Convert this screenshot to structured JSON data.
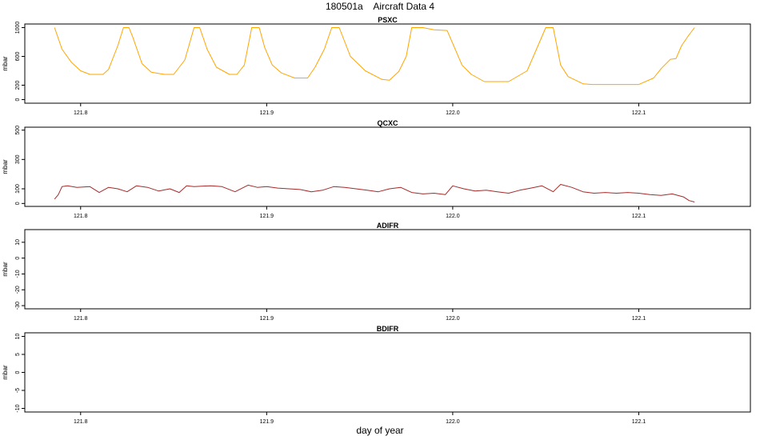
{
  "title": "180501a    Aircraft Data 4",
  "xlabel": "day of year",
  "chart_data": [
    {
      "type": "line",
      "title": "PSXC",
      "ylabel": "mbar",
      "color": "#FFA500",
      "xlim": [
        121.77,
        122.16
      ],
      "ylim": [
        -50,
        1050
      ],
      "xticks": [
        121.8,
        121.9,
        122.0,
        122.1
      ],
      "xtick_labels": [
        "121.8",
        "121.9",
        "122.0",
        "122.1"
      ],
      "yticks": [
        0,
        200,
        600,
        1000
      ],
      "ytick_labels": [
        "0",
        "200",
        "600",
        "1000"
      ],
      "series": [
        {
          "x": [
            121.786,
            121.79,
            121.795,
            121.8,
            121.805,
            121.812,
            121.815,
            121.82,
            121.823,
            121.826,
            121.828,
            121.833,
            121.838,
            121.845,
            121.85,
            121.856,
            121.861,
            121.864,
            121.868,
            121.873,
            121.88,
            121.884,
            121.888,
            121.892,
            121.896,
            121.899,
            121.903,
            121.908,
            121.915,
            121.922,
            121.926,
            121.931,
            121.935,
            121.939,
            121.945,
            121.953,
            121.962,
            121.966,
            121.971,
            121.975,
            121.978,
            121.984,
            121.99,
            121.997,
            122.005,
            122.01,
            122.017,
            122.022,
            122.03,
            122.04,
            122.045,
            122.05,
            122.054,
            122.058,
            122.062,
            122.07,
            122.075,
            122.085,
            122.1,
            122.108,
            122.112,
            122.117,
            122.12,
            122.123,
            122.127,
            122.13
          ],
          "y": [
            1000,
            700,
            520,
            400,
            350,
            350,
            420,
            750,
            1000,
            1000,
            870,
            500,
            380,
            350,
            350,
            550,
            1000,
            1000,
            700,
            450,
            350,
            350,
            480,
            1000,
            1000,
            720,
            480,
            370,
            300,
            300,
            450,
            700,
            1000,
            1000,
            600,
            400,
            280,
            270,
            390,
            600,
            1000,
            1000,
            970,
            960,
            480,
            350,
            250,
            250,
            250,
            400,
            700,
            1000,
            1000,
            480,
            320,
            220,
            210,
            210,
            210,
            300,
            430,
            560,
            570,
            750,
            900,
            1000
          ]
        }
      ]
    },
    {
      "type": "line",
      "title": "QCXC",
      "ylabel": "mbar",
      "color": "#A52A2A",
      "xlim": [
        121.77,
        122.16
      ],
      "ylim": [
        -20,
        520
      ],
      "xticks": [
        121.8,
        121.9,
        122.0,
        122.1
      ],
      "xtick_labels": [
        "121.8",
        "121.9",
        "122.0",
        "122.1"
      ],
      "yticks": [
        0,
        100,
        300,
        500
      ],
      "ytick_labels": [
        "0",
        "100",
        "300",
        "500"
      ],
      "series": [
        {
          "x": [
            121.786,
            121.788,
            121.79,
            121.793,
            121.798,
            121.805,
            121.81,
            121.815,
            121.82,
            121.825,
            121.83,
            121.836,
            121.842,
            121.848,
            121.853,
            121.857,
            121.861,
            121.865,
            121.87,
            121.876,
            121.883,
            121.89,
            121.895,
            121.9,
            121.906,
            121.912,
            121.918,
            121.924,
            121.93,
            121.936,
            121.942,
            121.948,
            121.954,
            121.96,
            121.966,
            121.972,
            121.978,
            121.984,
            121.99,
            121.996,
            122.0,
            122.006,
            122.012,
            122.018,
            122.024,
            122.03,
            122.036,
            122.042,
            122.048,
            122.054,
            122.058,
            122.064,
            122.07,
            122.076,
            122.082,
            122.088,
            122.094,
            122.1,
            122.106,
            122.112,
            122.118,
            122.124,
            122.127,
            122.13
          ],
          "y": [
            30,
            60,
            115,
            120,
            110,
            115,
            75,
            110,
            100,
            80,
            120,
            110,
            85,
            100,
            75,
            120,
            115,
            118,
            120,
            115,
            80,
            125,
            110,
            115,
            105,
            100,
            95,
            80,
            90,
            115,
            110,
            100,
            90,
            80,
            100,
            110,
            75,
            65,
            70,
            60,
            120,
            100,
            85,
            90,
            80,
            70,
            90,
            105,
            120,
            80,
            130,
            110,
            80,
            70,
            75,
            70,
            75,
            70,
            60,
            55,
            65,
            45,
            20,
            10
          ]
        }
      ]
    },
    {
      "type": "line",
      "title": "ADIFR",
      "ylabel": "mbar",
      "color": "#000000",
      "xlim": [
        121.77,
        122.16
      ],
      "ylim": [
        -32,
        18
      ],
      "xticks": [
        121.8,
        121.9,
        122.0,
        122.1
      ],
      "xtick_labels": [
        "121.8",
        "121.9",
        "122.0",
        "122.1"
      ],
      "yticks": [
        -30,
        -20,
        -10,
        0,
        10
      ],
      "ytick_labels": [
        "-30",
        "-20",
        "-10",
        "0",
        "10"
      ],
      "series": []
    },
    {
      "type": "line",
      "title": "BDIFR",
      "ylabel": "mbar",
      "color": "#000000",
      "xlim": [
        121.77,
        122.16
      ],
      "ylim": [
        -11,
        11
      ],
      "xticks": [
        121.8,
        121.9,
        122.0,
        122.1
      ],
      "xtick_labels": [
        "121.8",
        "121.9",
        "122.0",
        "122.1"
      ],
      "yticks": [
        -10,
        -5,
        0,
        5,
        10
      ],
      "ytick_labels": [
        "-10",
        "-5",
        "0",
        "5",
        "10"
      ],
      "series": []
    }
  ]
}
